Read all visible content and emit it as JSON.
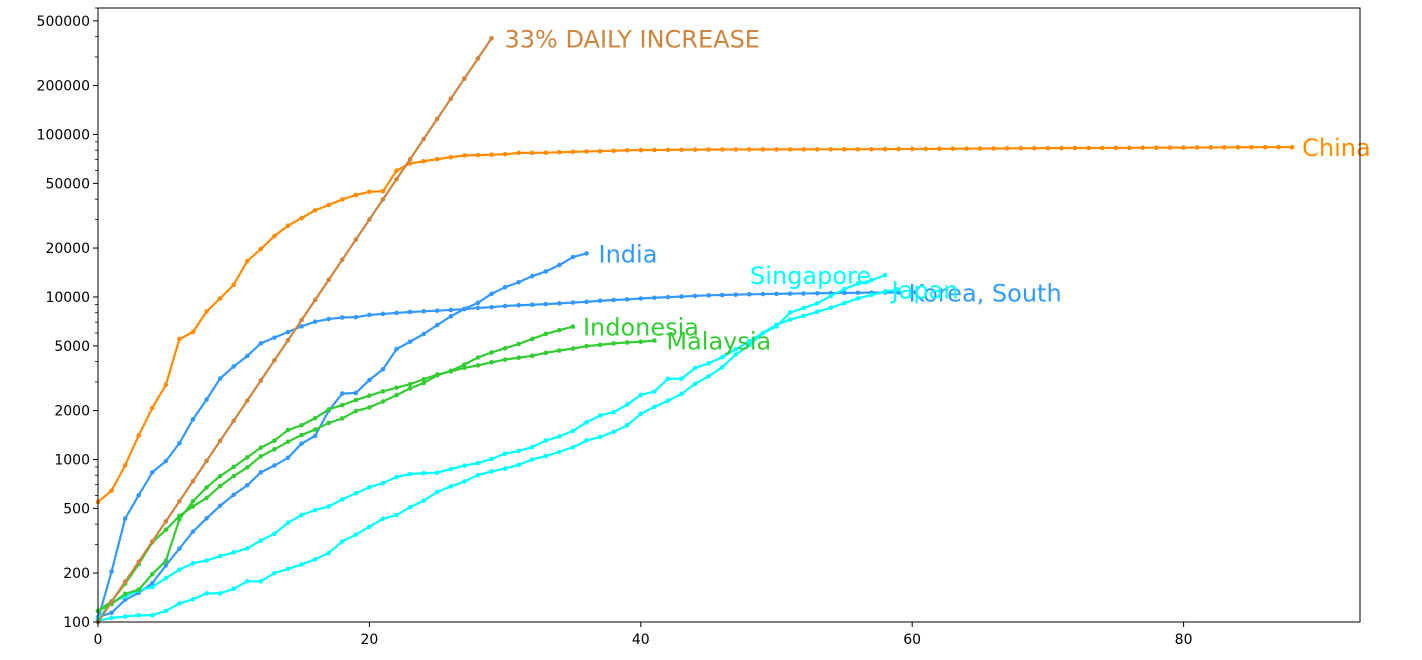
{
  "chart_data": {
    "type": "line",
    "title": "",
    "xlabel": "",
    "ylabel": "",
    "xlim": [
      0,
      93
    ],
    "ylim": [
      100,
      600000
    ],
    "yscale": "log",
    "grid": false,
    "xticks": [
      0,
      20,
      40,
      60,
      80
    ],
    "xtick_labels": [
      "0",
      "20",
      "40",
      "60",
      "80"
    ],
    "yticks": [
      100,
      200,
      500,
      1000,
      2000,
      5000,
      10000,
      20000,
      50000,
      100000,
      200000,
      500000
    ],
    "ytick_labels": [
      "100",
      "200",
      "500",
      "1000",
      "2000",
      "5000",
      "10000",
      "20000",
      "50000",
      "100000",
      "200000",
      "500000"
    ],
    "series": [
      {
        "name": "China",
        "color": "#ff8c00",
        "x": [
          0,
          1,
          2,
          3,
          4,
          5,
          6,
          7,
          8,
          9,
          10,
          11,
          12,
          13,
          14,
          15,
          16,
          17,
          18,
          19,
          20,
          21,
          22,
          23,
          24,
          25,
          26,
          27,
          28,
          29,
          30,
          31,
          32,
          33,
          34,
          35,
          36,
          37,
          38,
          39,
          40,
          41,
          42,
          43,
          44,
          45,
          46,
          47,
          48,
          49,
          50,
          51,
          52,
          53,
          54,
          55,
          56,
          57,
          58,
          59,
          60,
          61,
          62,
          63,
          64,
          65,
          66,
          67,
          68,
          69,
          70,
          71,
          72,
          73,
          74,
          75,
          76,
          77,
          78,
          79,
          80,
          81,
          82,
          83,
          84,
          85,
          86,
          87,
          88
        ],
        "y": [
          548,
          643,
          920,
          1406,
          2075,
          2877,
          5509,
          6087,
          8141,
          9802,
          11891,
          16630,
          19716,
          23707,
          27440,
          30587,
          34110,
          36814,
          39829,
          42354,
          44386,
          44759,
          59895,
          66358,
          68413,
          70513,
          72434,
          74211,
          74619,
          75077,
          75550,
          77001,
          77022,
          77241,
          77754,
          78166,
          78600,
          78928,
          79356,
          79932,
          80136,
          80261,
          80386,
          80537,
          80690,
          80770,
          80823,
          80860,
          80887,
          80921,
          80932,
          80945,
          80977,
          81003,
          81033,
          81058,
          81102,
          81156,
          81250,
          81305,
          81435,
          81498,
          81591,
          81661,
          81782,
          81897,
          81999,
          82122,
          82198,
          82279,
          82361,
          82432,
          82511,
          82543,
          82602,
          82665,
          82718,
          82809,
          82883,
          82941,
          83014,
          83134,
          83213,
          83306,
          83356,
          83403,
          83482,
          83597,
          83500
        ]
      },
      {
        "name": "Korea, South",
        "color": "#3399ff",
        "x": [
          0,
          1,
          2,
          3,
          4,
          5,
          6,
          7,
          8,
          9,
          10,
          11,
          12,
          13,
          14,
          15,
          16,
          17,
          18,
          19,
          20,
          21,
          22,
          23,
          24,
          25,
          26,
          27,
          28,
          29,
          30,
          31,
          32,
          33,
          34,
          35,
          36,
          37,
          38,
          39,
          40,
          41,
          42,
          43,
          44,
          45,
          46,
          47,
          48,
          49,
          50,
          51,
          52,
          53,
          54,
          55,
          56,
          57,
          58,
          59
        ],
        "y": [
          104,
          204,
          433,
          602,
          833,
          977,
          1261,
          1766,
          2337,
          3150,
          3736,
          4335,
          5186,
          5621,
          6088,
          6593,
          7041,
          7314,
          7478,
          7513,
          7755,
          7869,
          7979,
          8086,
          8162,
          8236,
          8320,
          8413,
          8565,
          8652,
          8799,
          8897,
          8961,
          9037,
          9137,
          9241,
          9332,
          9478,
          9583,
          9661,
          9786,
          9887,
          9976,
          10062,
          10156,
          10237,
          10284,
          10331,
          10384,
          10423,
          10450,
          10480,
          10512,
          10537,
          10564,
          10591,
          10613,
          10635,
          10653,
          10661
        ]
      },
      {
        "name": "India",
        "color": "#3399ff",
        "x": [
          0,
          1,
          2,
          3,
          4,
          5,
          6,
          7,
          8,
          9,
          10,
          11,
          12,
          13,
          14,
          15,
          16,
          17,
          18,
          19,
          20,
          21,
          22,
          23,
          24,
          25,
          26,
          27,
          28,
          29,
          30,
          31,
          32,
          33,
          34,
          35,
          36
        ],
        "y": [
          107,
          114,
          137,
          151,
          173,
          223,
          283,
          360,
          434,
          519,
          606,
          694,
          834,
          918,
          1024,
          1251,
          1397,
          1998,
          2543,
          2567,
          3082,
          3588,
          4778,
          5311,
          5916,
          6725,
          7598,
          8446,
          9205,
          10453,
          11487,
          12322,
          13430,
          14352,
          15722,
          17615,
          18539
        ]
      },
      {
        "name": "Japan",
        "color": "#00ffff",
        "x": [
          0,
          1,
          2,
          3,
          4,
          5,
          6,
          7,
          8,
          9,
          10,
          11,
          12,
          13,
          14,
          15,
          16,
          17,
          18,
          19,
          20,
          21,
          22,
          23,
          24,
          25,
          26,
          27,
          28,
          29,
          30,
          31,
          32,
          33,
          34,
          35,
          36,
          37,
          38,
          39,
          40,
          41,
          42,
          43,
          44,
          45,
          46,
          47,
          48,
          49,
          50,
          51,
          52,
          53,
          54,
          55,
          56,
          57,
          58,
          59
        ],
        "y": [
          105,
          132,
          144,
          156,
          164,
          186,
          210,
          230,
          239,
          254,
          268,
          284,
          317,
          349,
          408,
          455,
          488,
          514,
          568,
          620,
          675,
          716,
          780,
          814,
          824,
          829,
          873,
          917,
          950,
          1007,
          1086,
          1128,
          1193,
          1307,
          1387,
          1499,
          1693,
          1866,
          1953,
          2178,
          2495,
          2617,
          3139,
          3139,
          3654,
          3906,
          4257,
          4768,
          5347,
          6005,
          6748,
          7255,
          7645,
          8100,
          8582,
          9167,
          9795,
          10296,
          10797,
          11135
        ]
      },
      {
        "name": "Singapore",
        "color": "#00ffff",
        "x": [
          0,
          1,
          2,
          3,
          4,
          5,
          6,
          7,
          8,
          9,
          10,
          11,
          12,
          13,
          14,
          15,
          16,
          17,
          18,
          19,
          20,
          21,
          22,
          23,
          24,
          25,
          26,
          27,
          28,
          29,
          30,
          31,
          32,
          33,
          34,
          35,
          36,
          37,
          38,
          39,
          40,
          41,
          42,
          43,
          44,
          45,
          46,
          47,
          48,
          49,
          50,
          51,
          52,
          53,
          54,
          55,
          56,
          57,
          58
        ],
        "y": [
          102,
          106,
          108,
          110,
          110,
          117,
          130,
          138,
          150,
          150,
          160,
          178,
          178,
          200,
          212,
          226,
          243,
          266,
          313,
          345,
          385,
          432,
          455,
          509,
          558,
          631,
          683,
          732,
          802,
          844,
          879,
          926,
          1000,
          1049,
          1114,
          1189,
          1309,
          1375,
          1481,
          1623,
          1910,
          2108,
          2299,
          2532,
          2918,
          3252,
          3699,
          4427,
          5050,
          5992,
          6588,
          8014,
          8542,
          9125,
          10141,
          11178,
          12075,
          12693,
          13624
        ]
      },
      {
        "name": "Indonesia",
        "color": "#33cc33",
        "x": [
          0,
          1,
          2,
          3,
          4,
          5,
          6,
          7,
          8,
          9,
          10,
          11,
          12,
          13,
          14,
          15,
          16,
          17,
          18,
          19,
          20,
          21,
          22,
          23,
          24,
          25,
          26,
          27,
          28,
          29,
          30,
          31,
          32,
          33,
          34,
          35
        ],
        "y": [
          117,
          134,
          172,
          227,
          309,
          369,
          450,
          514,
          579,
          686,
          790,
          893,
          1046,
          1155,
          1285,
          1414,
          1528,
          1677,
          1790,
          1986,
          2092,
          2273,
          2491,
          2738,
          2956,
          3293,
          3512,
          3842,
          4241,
          4557,
          4839,
          5136,
          5516,
          5923,
          6248,
          6575
        ]
      },
      {
        "name": "Malaysia",
        "color": "#33cc33",
        "x": [
          0,
          1,
          2,
          3,
          4,
          5,
          6,
          7,
          8,
          9,
          10,
          11,
          12,
          13,
          14,
          15,
          16,
          17,
          18,
          19,
          20,
          21,
          22,
          23,
          24,
          25,
          26,
          27,
          28,
          29,
          30,
          31,
          32,
          33,
          34,
          35,
          36,
          37,
          38,
          39,
          40,
          41
        ],
        "y": [
          117,
          129,
          149,
          158,
          197,
          238,
          428,
          553,
          673,
          790,
          900,
          1030,
          1183,
          1306,
          1518,
          1624,
          1796,
          2031,
          2161,
          2320,
          2470,
          2626,
          2766,
          2908,
          3116,
          3333,
          3483,
          3662,
          3793,
          3963,
          4119,
          4228,
          4346,
          4530,
          4683,
          4817,
          4987,
          5072,
          5182,
          5251,
          5305,
          5389
        ]
      },
      {
        "name": "33% DAILY INCREASE",
        "color": "#cd853f",
        "x": [
          0,
          1,
          2,
          3,
          4,
          5,
          6,
          7,
          8,
          9,
          10,
          11,
          12,
          13,
          14,
          15,
          16,
          17,
          18,
          19,
          20,
          21,
          22,
          23,
          24,
          25,
          26,
          27,
          28,
          29
        ],
        "y": [
          100,
          133,
          177,
          235,
          313,
          416,
          553,
          736,
          979,
          1302,
          1731,
          2303,
          3063,
          4074,
          5418,
          7206,
          9584,
          12747,
          16953,
          22547,
          29987,
          39883,
          53044,
          70548,
          93829,
          124793,
          165975,
          220746,
          293592,
          390477
        ]
      }
    ]
  }
}
